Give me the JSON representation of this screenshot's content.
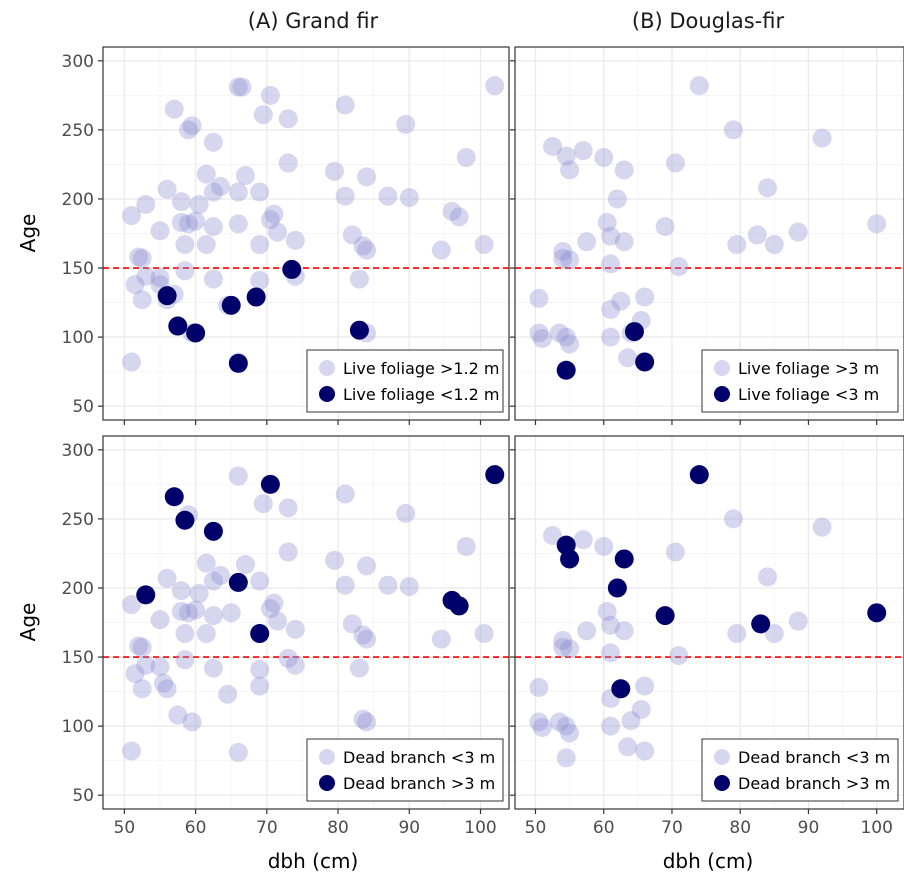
{
  "chart_data": {
    "type": "scatter",
    "layout": "2x2 facet grid",
    "xlabel": "dbh (cm)",
    "ylabel": "Age",
    "xlim": [
      47,
      104
    ],
    "ylim": [
      40,
      310
    ],
    "xticks": [
      50,
      60,
      70,
      80,
      90,
      100
    ],
    "yticks": [
      50,
      100,
      150,
      200,
      250,
      300
    ],
    "grid": true,
    "reference_line": {
      "y": 150,
      "style": "dashed",
      "color": "#ff0000"
    },
    "colors": {
      "light": "#8a8ad0",
      "dark": "#00006b",
      "ref_line": "#ff0000",
      "grid": "#ebebeb",
      "panel_border": "#333333"
    },
    "columns": [
      "(A) Grand fir",
      "(B) Douglas-fir"
    ],
    "panels": [
      {
        "id": "A-foliage",
        "legend_position": "bottom-right",
        "series": [
          {
            "name": "Live foliage >1.2 m",
            "style": "light",
            "points": [
              [
                66,
                281
              ],
              [
                66.5,
                281
              ],
              [
                57,
                265
              ],
              [
                70.5,
                275
              ],
              [
                81,
                268
              ],
              [
                102,
                282
              ],
              [
                59,
                250
              ],
              [
                59.5,
                253
              ],
              [
                69.5,
                261
              ],
              [
                73,
                258
              ],
              [
                89.5,
                254
              ],
              [
                62.5,
                241
              ],
              [
                73,
                226
              ],
              [
                98,
                230
              ],
              [
                61.5,
                218
              ],
              [
                67,
                217
              ],
              [
                79.5,
                220
              ],
              [
                84,
                216
              ],
              [
                56,
                207
              ],
              [
                62.5,
                205
              ],
              [
                63.5,
                209
              ],
              [
                66,
                205
              ],
              [
                69,
                205
              ],
              [
                58,
                198
              ],
              [
                60.5,
                196
              ],
              [
                51,
                188
              ],
              [
                53,
                196
              ],
              [
                70.5,
                185
              ],
              [
                71,
                189
              ],
              [
                81,
                202
              ],
              [
                87,
                202
              ],
              [
                90,
                201
              ],
              [
                96,
                191
              ],
              [
                97,
                187
              ],
              [
                55,
                177
              ],
              [
                59,
                182
              ],
              [
                58,
                183
              ],
              [
                60,
                184
              ],
              [
                62.5,
                180
              ],
              [
                66,
                182
              ],
              [
                71.5,
                176
              ],
              [
                61.5,
                167
              ],
              [
                58.5,
                167
              ],
              [
                69,
                167
              ],
              [
                74,
                170
              ],
              [
                82,
                174
              ],
              [
                83.5,
                166
              ],
              [
                84,
                163
              ],
              [
                94.5,
                163
              ],
              [
                100.5,
                167
              ],
              [
                52,
                158
              ],
              [
                52.5,
                157
              ],
              [
                58.5,
                148
              ],
              [
                51.5,
                138
              ],
              [
                53,
                144
              ],
              [
                55,
                143
              ],
              [
                55,
                138
              ],
              [
                62.5,
                142
              ],
              [
                69,
                141
              ],
              [
                74,
                144
              ],
              [
                83,
                142
              ],
              [
                57,
                131
              ],
              [
                52.5,
                127
              ],
              [
                56,
                127
              ],
              [
                64.5,
                123
              ],
              [
                57.5,
                108
              ],
              [
                59.5,
                103
              ],
              [
                84,
                103
              ],
              [
                51,
                82
              ],
              [
                66,
                82
              ]
            ]
          },
          {
            "name": "Live foliage <1.2 m",
            "style": "dark",
            "points": [
              [
                56,
                130
              ],
              [
                57.5,
                108
              ],
              [
                60,
                103
              ],
              [
                65,
                123
              ],
              [
                66,
                81
              ],
              [
                68.5,
                129
              ],
              [
                73.5,
                149
              ],
              [
                83,
                105
              ]
            ]
          }
        ]
      },
      {
        "id": "B-foliage",
        "legend_position": "bottom-right",
        "series": [
          {
            "name": "Live foliage >3 m",
            "style": "light",
            "points": [
              [
                74,
                282
              ],
              [
                79,
                250
              ],
              [
                92,
                244
              ],
              [
                52.5,
                238
              ],
              [
                57,
                235
              ],
              [
                54.5,
                231
              ],
              [
                55,
                221
              ],
              [
                60,
                230
              ],
              [
                63,
                221
              ],
              [
                70.5,
                226
              ],
              [
                62,
                200
              ],
              [
                84,
                208
              ],
              [
                60.5,
                183
              ],
              [
                61,
                173
              ],
              [
                69,
                180
              ],
              [
                100,
                182
              ],
              [
                79.5,
                167
              ],
              [
                82.5,
                174
              ],
              [
                85,
                167
              ],
              [
                88.5,
                176
              ],
              [
                54,
                162
              ],
              [
                54,
                157
              ],
              [
                55,
                156
              ],
              [
                57.5,
                169
              ],
              [
                63,
                169
              ],
              [
                61,
                153
              ],
              [
                71,
                151
              ],
              [
                50.5,
                128
              ],
              [
                62.5,
                126
              ],
              [
                66,
                129
              ],
              [
                61,
                120
              ],
              [
                50.5,
                103
              ],
              [
                51,
                99
              ],
              [
                53.5,
                103
              ],
              [
                54.5,
                100
              ],
              [
                55,
                95
              ],
              [
                61,
                100
              ],
              [
                63.5,
                85
              ],
              [
                65.5,
                112
              ],
              [
                64,
                103
              ]
            ]
          },
          {
            "name": "Live foliage <3 m",
            "style": "dark",
            "points": [
              [
                54.5,
                76
              ],
              [
                64.5,
                104
              ],
              [
                66,
                82
              ]
            ]
          }
        ]
      },
      {
        "id": "A-deadbranch",
        "legend_position": "bottom-right",
        "series": [
          {
            "name": "Dead branch <3 m",
            "style": "light",
            "points": [
              [
                66,
                281
              ],
              [
                59,
                253
              ],
              [
                69.5,
                261
              ],
              [
                73,
                258
              ],
              [
                81,
                268
              ],
              [
                89.5,
                254
              ],
              [
                73,
                226
              ],
              [
                98,
                230
              ],
              [
                61.5,
                218
              ],
              [
                67,
                217
              ],
              [
                79.5,
                220
              ],
              [
                84,
                216
              ],
              [
                56,
                207
              ],
              [
                62.5,
                205
              ],
              [
                63.5,
                209
              ],
              [
                69,
                205
              ],
              [
                58,
                198
              ],
              [
                60.5,
                196
              ],
              [
                51,
                188
              ],
              [
                70.5,
                185
              ],
              [
                71,
                189
              ],
              [
                81,
                202
              ],
              [
                87,
                202
              ],
              [
                90,
                201
              ],
              [
                55,
                177
              ],
              [
                58,
                183
              ],
              [
                59,
                182
              ],
              [
                60,
                184
              ],
              [
                62.5,
                180
              ],
              [
                65,
                182
              ],
              [
                71.5,
                176
              ],
              [
                61.5,
                167
              ],
              [
                58.5,
                167
              ],
              [
                74,
                170
              ],
              [
                82,
                174
              ],
              [
                83.5,
                166
              ],
              [
                84,
                163
              ],
              [
                94.5,
                163
              ],
              [
                100.5,
                167
              ],
              [
                52,
                158
              ],
              [
                52.5,
                157
              ],
              [
                58.5,
                148
              ],
              [
                51.5,
                138
              ],
              [
                53,
                144
              ],
              [
                55,
                143
              ],
              [
                62.5,
                142
              ],
              [
                69,
                141
              ],
              [
                74,
                144
              ],
              [
                83,
                142
              ],
              [
                73,
                149
              ],
              [
                52.5,
                127
              ],
              [
                56,
                127
              ],
              [
                55.5,
                131
              ],
              [
                69,
                129
              ],
              [
                64.5,
                123
              ],
              [
                57.5,
                108
              ],
              [
                59.5,
                103
              ],
              [
                83.5,
                105
              ],
              [
                84,
                103
              ],
              [
                51,
                82
              ],
              [
                66,
                81
              ]
            ]
          },
          {
            "name": "Dead branch >3 m",
            "style": "dark",
            "points": [
              [
                57,
                266
              ],
              [
                70.5,
                275
              ],
              [
                102,
                282
              ],
              [
                58.5,
                249
              ],
              [
                62.5,
                241
              ],
              [
                53,
                195
              ],
              [
                66,
                204
              ],
              [
                96,
                191
              ],
              [
                97,
                187
              ],
              [
                69,
                167
              ]
            ]
          }
        ]
      },
      {
        "id": "B-deadbranch",
        "legend_position": "bottom-right",
        "series": [
          {
            "name": "Dead branch <3 m",
            "style": "light",
            "points": [
              [
                79,
                250
              ],
              [
                92,
                244
              ],
              [
                52.5,
                238
              ],
              [
                57,
                235
              ],
              [
                60,
                230
              ],
              [
                70.5,
                226
              ],
              [
                84,
                208
              ],
              [
                60.5,
                183
              ],
              [
                61,
                173
              ],
              [
                79.5,
                167
              ],
              [
                85,
                167
              ],
              [
                88.5,
                176
              ],
              [
                54,
                162
              ],
              [
                54,
                157
              ],
              [
                55,
                156
              ],
              [
                57.5,
                169
              ],
              [
                63,
                169
              ],
              [
                61,
                153
              ],
              [
                71,
                151
              ],
              [
                50.5,
                128
              ],
              [
                66,
                129
              ],
              [
                61,
                120
              ],
              [
                50.5,
                103
              ],
              [
                51,
                99
              ],
              [
                53.5,
                103
              ],
              [
                54.5,
                100
              ],
              [
                55,
                95
              ],
              [
                54.5,
                77
              ],
              [
                61,
                100
              ],
              [
                63.5,
                85
              ],
              [
                65.5,
                112
              ],
              [
                64,
                104
              ],
              [
                66,
                82
              ]
            ]
          },
          {
            "name": "Dead branch >3 m",
            "style": "dark",
            "points": [
              [
                74,
                282
              ],
              [
                54.5,
                231
              ],
              [
                55,
                221
              ],
              [
                63,
                221
              ],
              [
                62,
                200
              ],
              [
                69,
                180
              ],
              [
                83,
                174
              ],
              [
                100,
                182
              ],
              [
                62.5,
                127
              ]
            ]
          }
        ]
      }
    ]
  }
}
